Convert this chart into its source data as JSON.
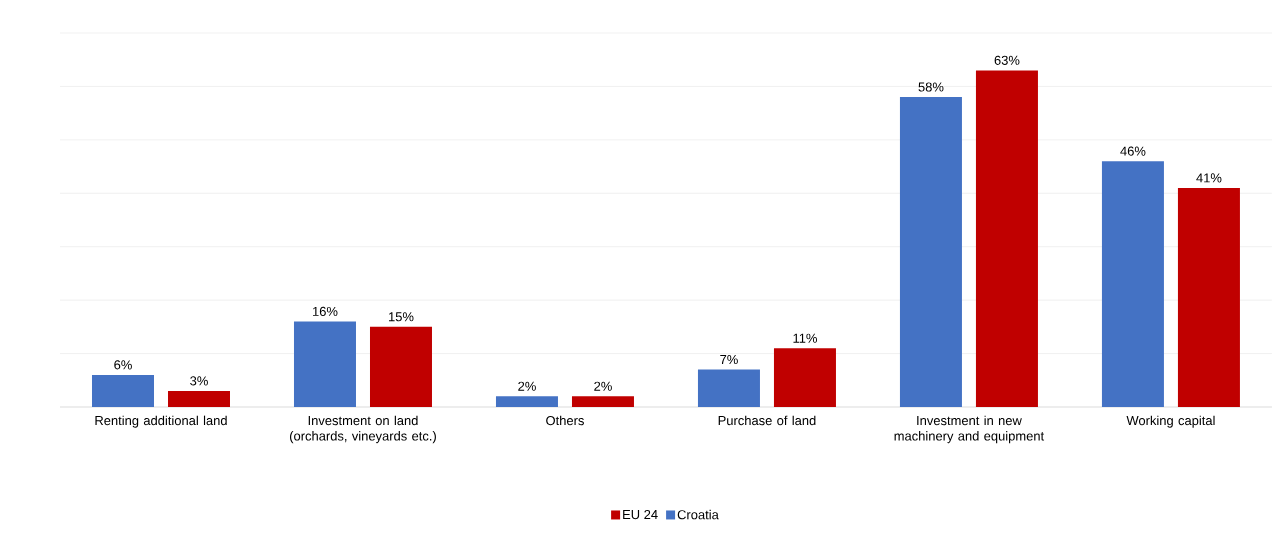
{
  "chart_data": {
    "type": "bar",
    "categories": [
      "Renting additional land",
      "Investment on land (orchards, vineyards etc.)",
      "Others",
      "Purchase of land",
      "Investment in new machinery and equipment",
      "Working capital"
    ],
    "series": [
      {
        "name": "Croatia",
        "color": "#4472c4",
        "values": [
          6,
          16,
          2,
          7,
          58,
          46
        ],
        "value_labels": [
          "6%",
          "16%",
          "2%",
          "7%",
          "58%",
          "46%"
        ]
      },
      {
        "name": "EU 24",
        "color": "#c00000",
        "values": [
          3,
          15,
          2,
          11,
          63,
          41
        ],
        "value_labels": [
          "3%",
          "15%",
          "2%",
          "11%",
          "63%",
          "41%"
        ]
      }
    ],
    "ylim": [
      0,
      70
    ],
    "yticks": [
      {
        "value": 0,
        "label": null
      },
      {
        "value": 10,
        "label": null
      },
      {
        "value": 20,
        "label": null
      },
      {
        "value": 30,
        "label": null
      },
      {
        "value": 40,
        "label": null
      },
      {
        "value": 50,
        "label": null
      },
      {
        "value": 60,
        "label": null
      },
      {
        "value": 70,
        "label": null
      }
    ],
    "grid": "y",
    "legend": "bottom",
    "tick_labels": "x"
  }
}
